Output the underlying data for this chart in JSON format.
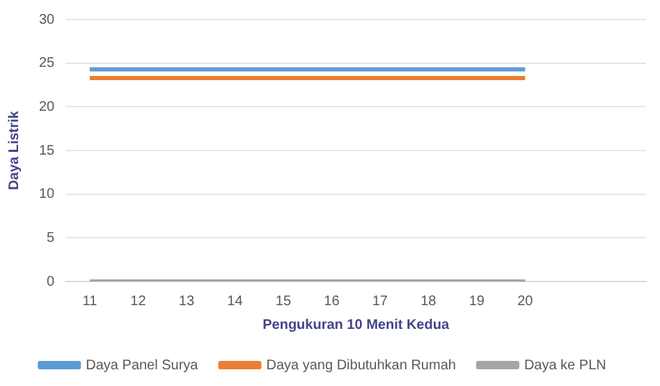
{
  "chart_data": {
    "type": "line",
    "xlabel": "Pengukuran 10 Menit Kedua",
    "ylabel": "Daya Listrik",
    "categories": [
      "11",
      "12",
      "13",
      "14",
      "15",
      "16",
      "17",
      "18",
      "19",
      "20",
      null,
      null
    ],
    "series": [
      {
        "name": "Daya Panel Surya",
        "color": "#5b9bd5",
        "values": [
          24.3,
          24.3,
          24.3,
          24.3,
          24.3,
          24.3,
          24.3,
          24.3,
          24.3,
          24.3,
          null,
          null
        ]
      },
      {
        "name": "Daya yang Dibutuhkan Rumah",
        "color": "#ed7d31",
        "values": [
          23.3,
          23.3,
          23.3,
          23.3,
          23.3,
          23.3,
          23.3,
          23.3,
          23.3,
          23.3,
          null,
          null
        ]
      },
      {
        "name": "Daya ke PLN",
        "color": "#a5a5a5",
        "values": [
          0,
          0,
          0,
          0,
          0,
          0,
          0,
          0,
          0,
          0,
          null,
          null
        ]
      }
    ],
    "ylim": [
      0,
      30
    ],
    "yticks": [
      0,
      5,
      10,
      15,
      20,
      25,
      30
    ],
    "grid": "y",
    "legend": "bottom",
    "marker": "none",
    "line_style": "solid"
  }
}
